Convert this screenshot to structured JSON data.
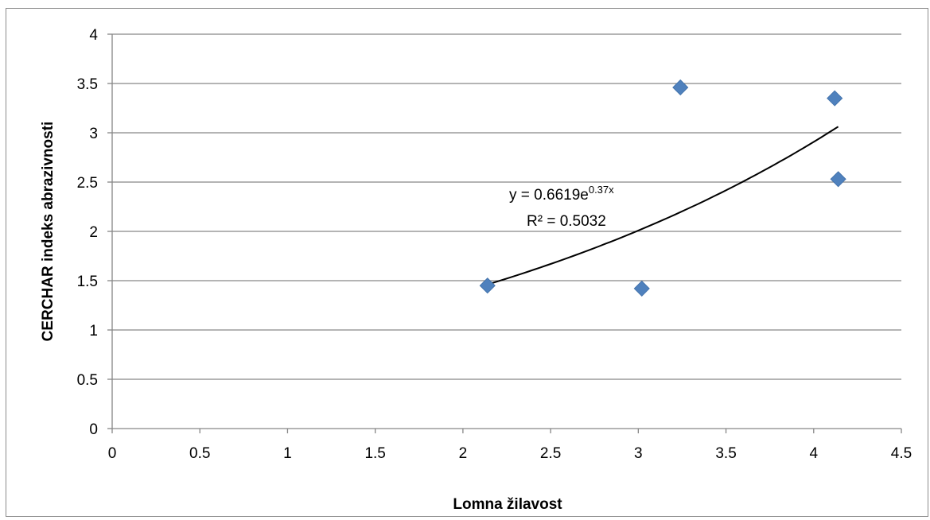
{
  "chart_data": {
    "type": "scatter",
    "title": "",
    "xlabel": "Lomna žilavost",
    "ylabel": "CERCHAR indeks abrazivnosti",
    "xlim": [
      0,
      4.5
    ],
    "ylim": [
      0,
      4
    ],
    "x_ticks": [
      "0",
      "0.5",
      "1",
      "1.5",
      "2",
      "2.5",
      "3",
      "3.5",
      "4",
      "4.5"
    ],
    "y_ticks": [
      "0",
      "0.5",
      "1",
      "1.5",
      "2",
      "2.5",
      "3",
      "3.5",
      "4"
    ],
    "grid": "horizontal",
    "legend": "none",
    "series": [
      {
        "marker": "diamond",
        "color": "#4f81bd",
        "points": [
          {
            "x": 2.14,
            "y": 1.45
          },
          {
            "x": 3.02,
            "y": 1.42
          },
          {
            "x": 3.24,
            "y": 3.46
          },
          {
            "x": 4.12,
            "y": 3.35
          },
          {
            "x": 4.14,
            "y": 2.53
          }
        ]
      }
    ],
    "trendline": {
      "type": "exponential",
      "a": 0.6619,
      "b": 0.37,
      "x_range": [
        2.14,
        4.14
      ],
      "color": "#000000",
      "equation_base": "y = 0.6619e",
      "equation_exponent": "0.37x",
      "r_squared": "R² = 0.5032"
    }
  }
}
